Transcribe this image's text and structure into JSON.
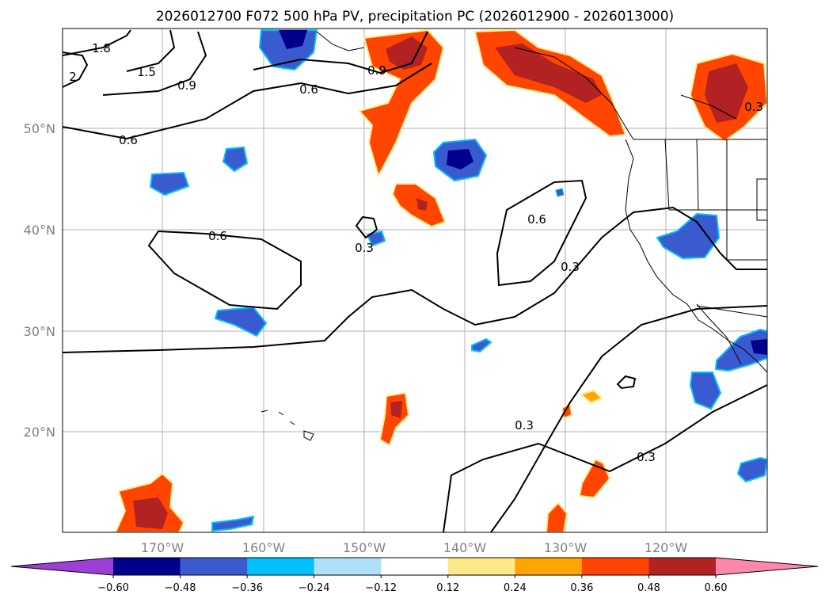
{
  "title": "2026012700 F072 500 hPa PV, precipitation PC (2026012900 - 2026013000)",
  "map": {
    "lat_labels": [
      "50°N",
      "40°N",
      "30°N",
      "20°N"
    ],
    "lon_labels": [
      "170°W",
      "160°W",
      "150°W",
      "140°W",
      "130°W",
      "120°W"
    ],
    "grid": true,
    "colors": {
      "coast": "#000000",
      "grid": "#b0b0b0",
      "frame": "#000000"
    }
  },
  "pv_contour_labels": [
    "1.8",
    "1.5",
    "2",
    "0.9",
    "0.9",
    "0.6",
    "0.6",
    "0.6",
    "0.3",
    "0.6",
    "0.3",
    "0.3",
    "0.3",
    "0.3"
  ],
  "colorbar": {
    "ticks": [
      "−0.60",
      "−0.48",
      "−0.36",
      "−0.24",
      "−0.12",
      "0.12",
      "0.24",
      "0.36",
      "0.48",
      "0.60"
    ],
    "colors": [
      "#9b3fd6",
      "#00008b",
      "#3a5bd0",
      "#00bfff",
      "#aee0fa",
      "#ffffff",
      "#fde98a",
      "#ffa500",
      "#ff4500",
      "#b22222",
      "#ff88aa"
    ]
  }
}
